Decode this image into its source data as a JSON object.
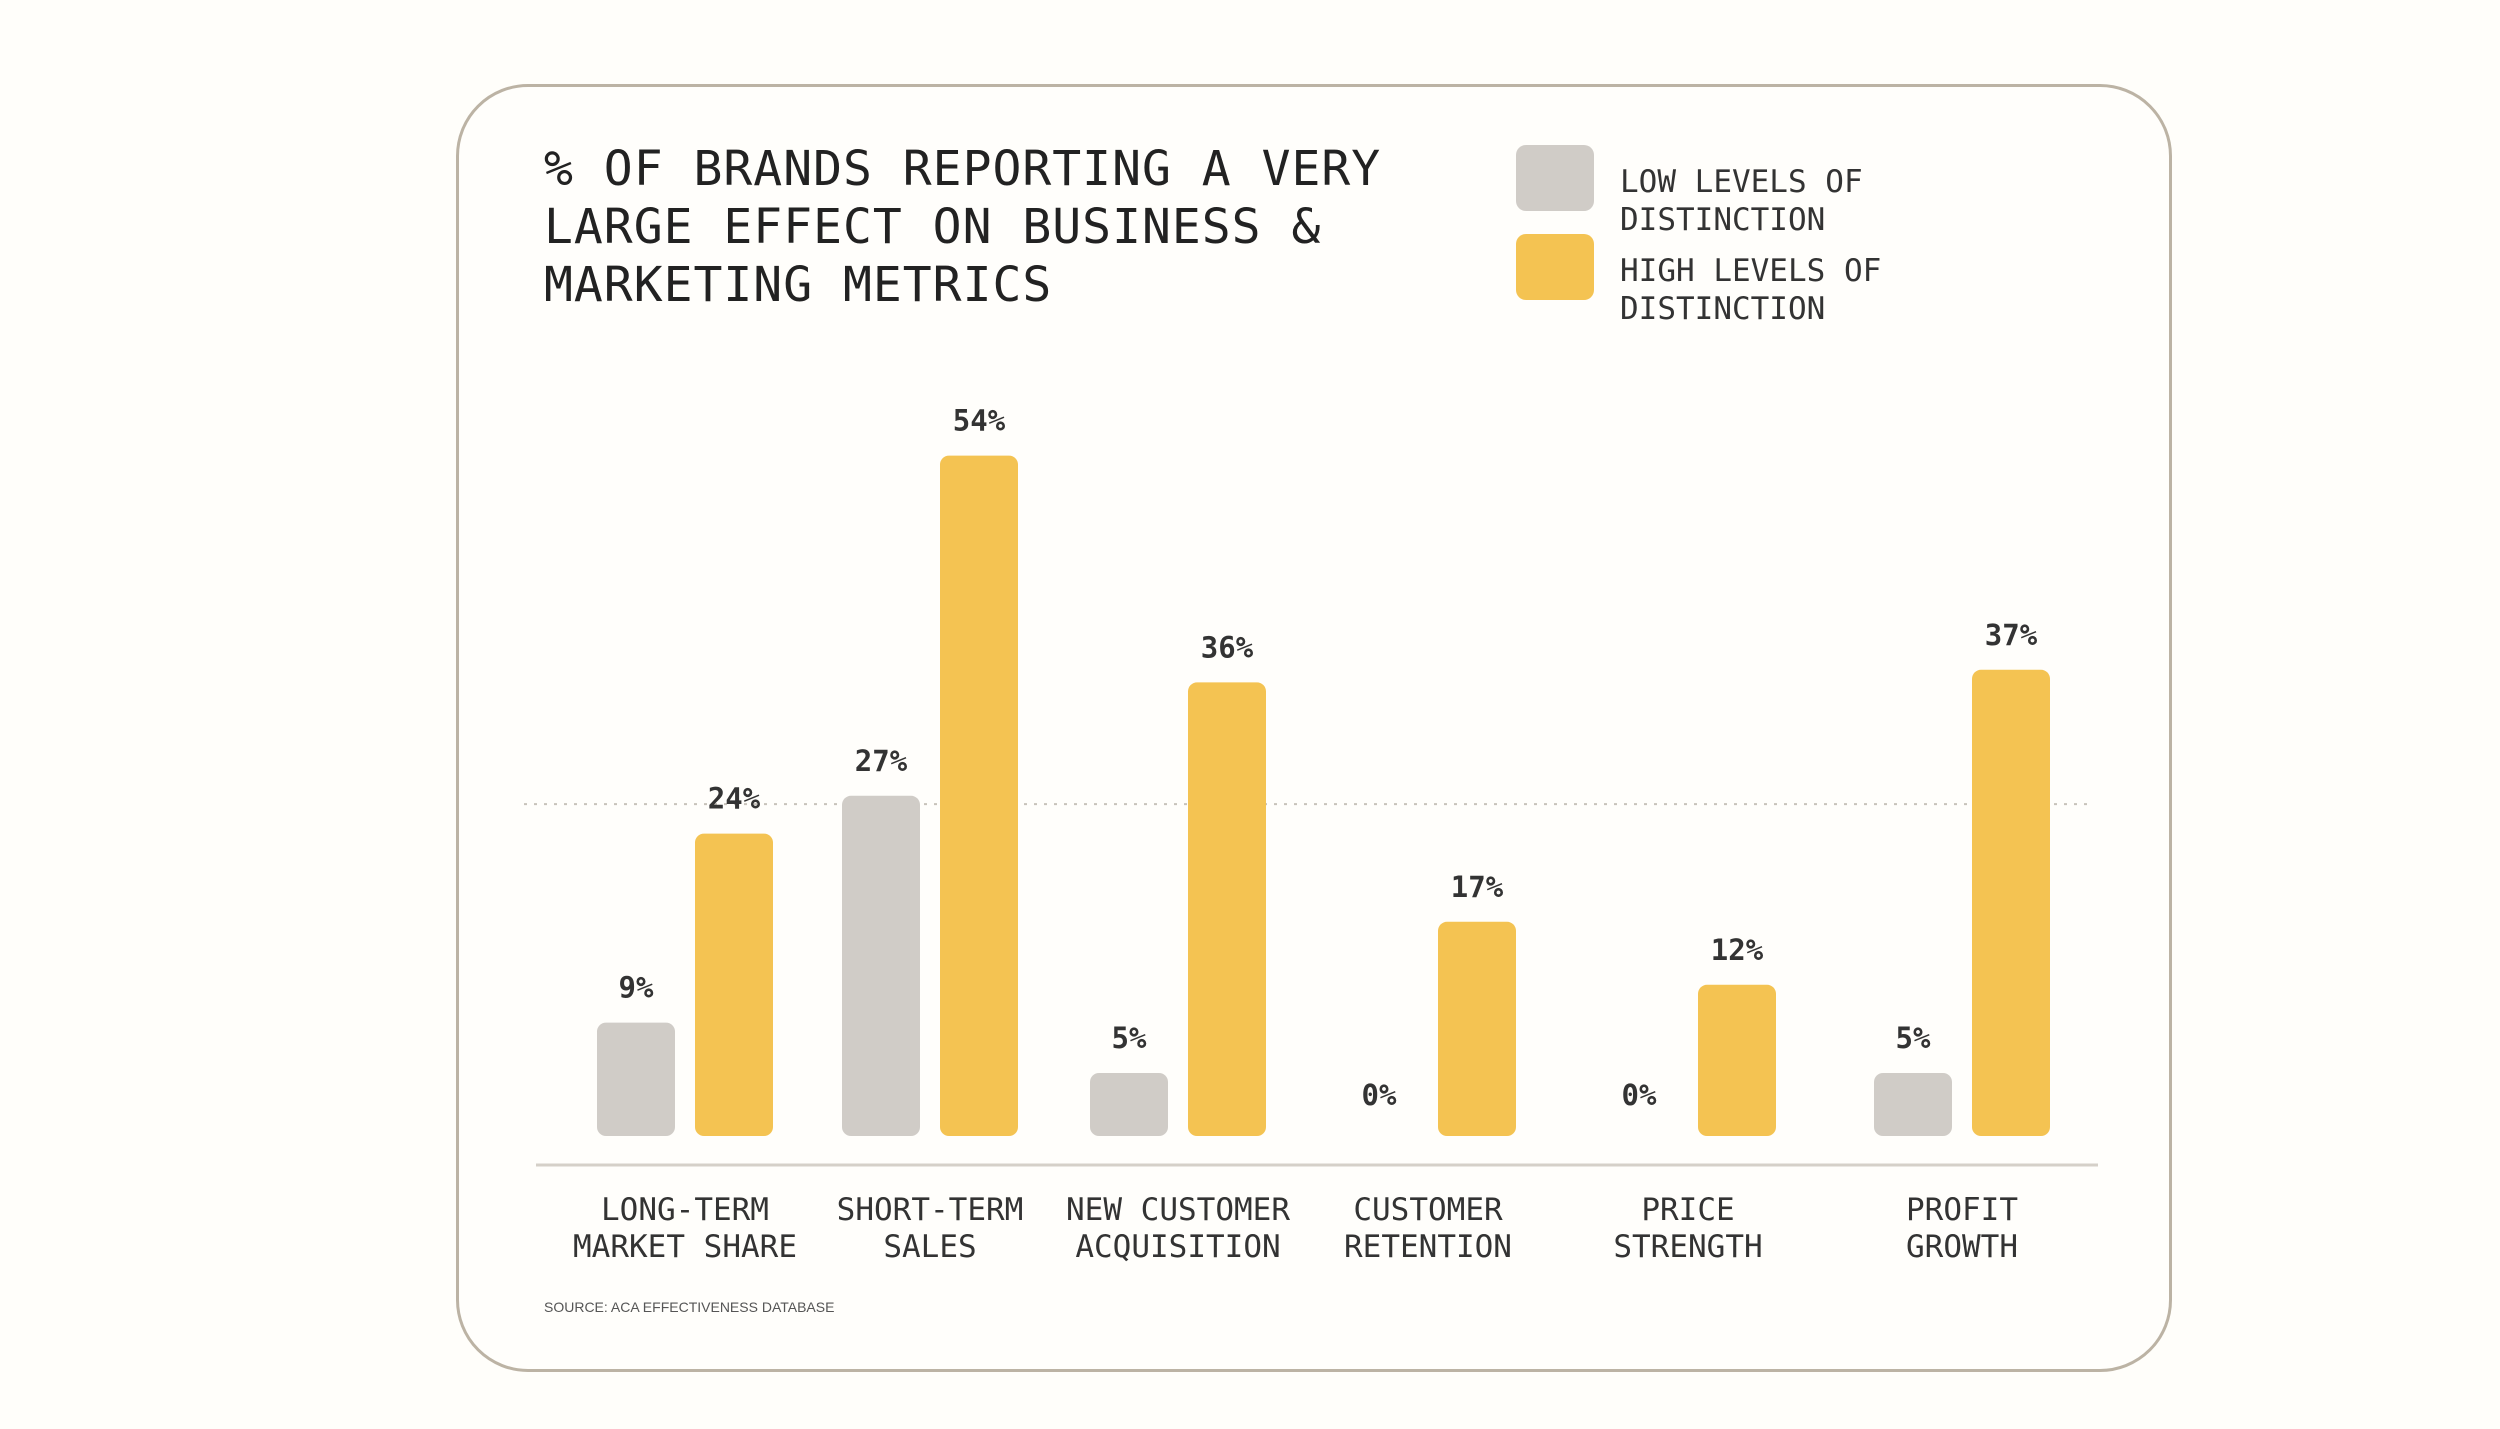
{
  "chart_data": {
    "type": "bar",
    "title_lines": [
      "% OF BRANDS REPORTING A VERY",
      "LARGE EFFECT ON BUSINESS &",
      "MARKETING METRICS"
    ],
    "categories": [
      [
        "LONG-TERM",
        "MARKET SHARE"
      ],
      [
        "SHORT-TERM",
        "SALES"
      ],
      [
        "NEW CUSTOMER",
        "ACQUISITION"
      ],
      [
        "CUSTOMER",
        "RETENTION"
      ],
      [
        "PRICE",
        "STRENGTH"
      ],
      [
        "PROFIT",
        "GROWTH"
      ]
    ],
    "series": [
      {
        "name": [
          "LOW LEVELS OF",
          "DISTINCTION"
        ],
        "color": "#d0ccc7",
        "values": [
          9,
          27,
          5,
          0,
          0,
          5
        ],
        "labels": [
          "9%",
          "27%",
          "5%",
          "0%",
          "0%",
          "5%"
        ]
      },
      {
        "name": [
          "HIGH LEVELS OF",
          "DISTINCTION"
        ],
        "color": "#f4c352",
        "values": [
          24,
          54,
          36,
          17,
          12,
          37
        ],
        "labels": [
          "24%",
          "54%",
          "36%",
          "17%",
          "12%",
          "37%"
        ]
      }
    ],
    "ylim": [
      0,
      54
    ],
    "reference_line_value": 27,
    "source": "SOURCE: ACA EFFECTIVENESS DATABASE"
  }
}
